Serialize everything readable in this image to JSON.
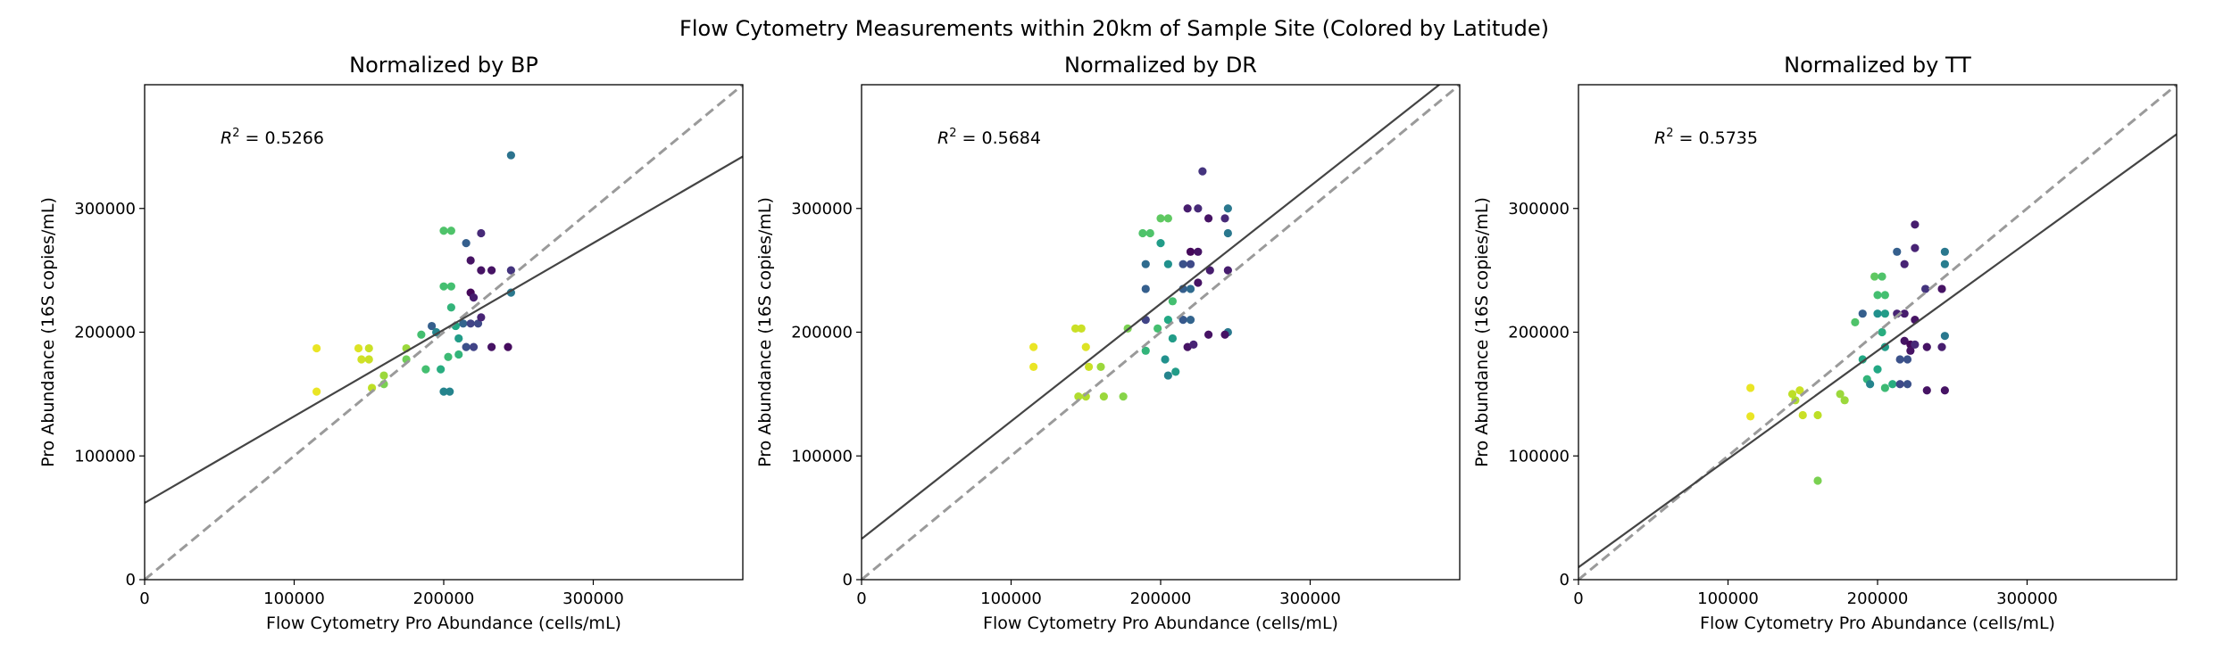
{
  "figure_title": "Flow Cytometry Measurements within 20km of Sample Site (Colored by Latitude)",
  "chart_data": [
    {
      "type": "scatter",
      "title": "Normalized by BP",
      "xlabel": "Flow Cytometry Pro Abundance (cells/mL)",
      "ylabel": "Pro Abundance (16S copies/mL)",
      "xlim": [
        0,
        400000
      ],
      "ylim": [
        0,
        400000
      ],
      "x_ticks": [
        "0",
        "100000",
        "200000",
        "300000"
      ],
      "y_ticks": [
        "0",
        "100000",
        "200000",
        "300000"
      ],
      "annotation": "R² = 0.5266",
      "r2_label": "R",
      "r2_sup": "2",
      "r2_value": " = 0.5266",
      "grid": false,
      "identity_line": true,
      "fit_line": {
        "intercept": 62000,
        "slope": 0.7
      },
      "colormap": "viridis",
      "points": [
        {
          "x": 115000,
          "y": 187000,
          "c": 0.97
        },
        {
          "x": 115000,
          "y": 152000,
          "c": 0.97
        },
        {
          "x": 143000,
          "y": 187000,
          "c": 0.95
        },
        {
          "x": 145000,
          "y": 178000,
          "c": 0.93
        },
        {
          "x": 150000,
          "y": 187000,
          "c": 0.92
        },
        {
          "x": 150000,
          "y": 178000,
          "c": 0.92
        },
        {
          "x": 152000,
          "y": 155000,
          "c": 0.9
        },
        {
          "x": 160000,
          "y": 165000,
          "c": 0.85
        },
        {
          "x": 160000,
          "y": 158000,
          "c": 0.8
        },
        {
          "x": 175000,
          "y": 187000,
          "c": 0.85
        },
        {
          "x": 175000,
          "y": 178000,
          "c": 0.78
        },
        {
          "x": 185000,
          "y": 198000,
          "c": 0.7
        },
        {
          "x": 188000,
          "y": 170000,
          "c": 0.7
        },
        {
          "x": 192000,
          "y": 205000,
          "c": 0.3
        },
        {
          "x": 195000,
          "y": 200000,
          "c": 0.45
        },
        {
          "x": 198000,
          "y": 170000,
          "c": 0.62
        },
        {
          "x": 200000,
          "y": 282000,
          "c": 0.72
        },
        {
          "x": 205000,
          "y": 282000,
          "c": 0.72
        },
        {
          "x": 200000,
          "y": 237000,
          "c": 0.7
        },
        {
          "x": 205000,
          "y": 237000,
          "c": 0.7
        },
        {
          "x": 205000,
          "y": 220000,
          "c": 0.65
        },
        {
          "x": 208000,
          "y": 205000,
          "c": 0.6
        },
        {
          "x": 210000,
          "y": 182000,
          "c": 0.65
        },
        {
          "x": 203000,
          "y": 180000,
          "c": 0.68
        },
        {
          "x": 200000,
          "y": 152000,
          "c": 0.45
        },
        {
          "x": 204000,
          "y": 152000,
          "c": 0.45
        },
        {
          "x": 210000,
          "y": 195000,
          "c": 0.55
        },
        {
          "x": 213000,
          "y": 207000,
          "c": 0.32
        },
        {
          "x": 215000,
          "y": 272000,
          "c": 0.3
        },
        {
          "x": 218000,
          "y": 258000,
          "c": 0.05
        },
        {
          "x": 218000,
          "y": 232000,
          "c": 0.02
        },
        {
          "x": 220000,
          "y": 228000,
          "c": 0.08
        },
        {
          "x": 218000,
          "y": 207000,
          "c": 0.2
        },
        {
          "x": 223000,
          "y": 207000,
          "c": 0.22
        },
        {
          "x": 215000,
          "y": 188000,
          "c": 0.25
        },
        {
          "x": 220000,
          "y": 188000,
          "c": 0.2
        },
        {
          "x": 225000,
          "y": 280000,
          "c": 0.12
        },
        {
          "x": 225000,
          "y": 250000,
          "c": 0.05
        },
        {
          "x": 232000,
          "y": 250000,
          "c": 0.05
        },
        {
          "x": 225000,
          "y": 212000,
          "c": 0.1
        },
        {
          "x": 232000,
          "y": 188000,
          "c": 0.05
        },
        {
          "x": 243000,
          "y": 188000,
          "c": 0.03
        },
        {
          "x": 245000,
          "y": 250000,
          "c": 0.15
        },
        {
          "x": 245000,
          "y": 343000,
          "c": 0.38
        },
        {
          "x": 245000,
          "y": 232000,
          "c": 0.4
        }
      ]
    },
    {
      "type": "scatter",
      "title": "Normalized by DR",
      "xlabel": "Flow Cytometry Pro Abundance (cells/mL)",
      "ylabel": "Pro Abundance (16S copies/mL)",
      "xlim": [
        0,
        400000
      ],
      "ylim": [
        0,
        400000
      ],
      "x_ticks": [
        "0",
        "100000",
        "200000",
        "300000"
      ],
      "y_ticks": [
        "0",
        "100000",
        "200000",
        "300000"
      ],
      "annotation": "R² = 0.5684",
      "r2_label": "R",
      "r2_sup": "2",
      "r2_value": " = 0.5684",
      "grid": false,
      "identity_line": true,
      "fit_line": {
        "intercept": 33000,
        "slope": 0.95
      },
      "colormap": "viridis",
      "points": [
        {
          "x": 115000,
          "y": 188000,
          "c": 0.97
        },
        {
          "x": 115000,
          "y": 172000,
          "c": 0.97
        },
        {
          "x": 143000,
          "y": 203000,
          "c": 0.92
        },
        {
          "x": 147000,
          "y": 203000,
          "c": 0.92
        },
        {
          "x": 150000,
          "y": 188000,
          "c": 0.95
        },
        {
          "x": 152000,
          "y": 172000,
          "c": 0.92
        },
        {
          "x": 145000,
          "y": 148000,
          "c": 0.88
        },
        {
          "x": 150000,
          "y": 148000,
          "c": 0.88
        },
        {
          "x": 160000,
          "y": 172000,
          "c": 0.85
        },
        {
          "x": 162000,
          "y": 148000,
          "c": 0.85
        },
        {
          "x": 175000,
          "y": 148000,
          "c": 0.82
        },
        {
          "x": 178000,
          "y": 203000,
          "c": 0.8
        },
        {
          "x": 188000,
          "y": 280000,
          "c": 0.72
        },
        {
          "x": 193000,
          "y": 280000,
          "c": 0.72
        },
        {
          "x": 190000,
          "y": 255000,
          "c": 0.35
        },
        {
          "x": 190000,
          "y": 235000,
          "c": 0.3
        },
        {
          "x": 190000,
          "y": 210000,
          "c": 0.2
        },
        {
          "x": 190000,
          "y": 185000,
          "c": 0.65
        },
        {
          "x": 198000,
          "y": 203000,
          "c": 0.7
        },
        {
          "x": 200000,
          "y": 292000,
          "c": 0.75
        },
        {
          "x": 205000,
          "y": 292000,
          "c": 0.75
        },
        {
          "x": 200000,
          "y": 272000,
          "c": 0.55
        },
        {
          "x": 205000,
          "y": 255000,
          "c": 0.5
        },
        {
          "x": 208000,
          "y": 225000,
          "c": 0.7
        },
        {
          "x": 205000,
          "y": 210000,
          "c": 0.6
        },
        {
          "x": 208000,
          "y": 195000,
          "c": 0.55
        },
        {
          "x": 203000,
          "y": 178000,
          "c": 0.5
        },
        {
          "x": 205000,
          "y": 165000,
          "c": 0.45
        },
        {
          "x": 210000,
          "y": 168000,
          "c": 0.55
        },
        {
          "x": 215000,
          "y": 255000,
          "c": 0.25
        },
        {
          "x": 220000,
          "y": 255000,
          "c": 0.22
        },
        {
          "x": 215000,
          "y": 235000,
          "c": 0.3
        },
        {
          "x": 220000,
          "y": 235000,
          "c": 0.35
        },
        {
          "x": 215000,
          "y": 210000,
          "c": 0.28
        },
        {
          "x": 220000,
          "y": 210000,
          "c": 0.32
        },
        {
          "x": 218000,
          "y": 188000,
          "c": 0.05
        },
        {
          "x": 222000,
          "y": 190000,
          "c": 0.1
        },
        {
          "x": 218000,
          "y": 300000,
          "c": 0.08
        },
        {
          "x": 225000,
          "y": 300000,
          "c": 0.12
        },
        {
          "x": 220000,
          "y": 265000,
          "c": 0.02
        },
        {
          "x": 225000,
          "y": 265000,
          "c": 0.05
        },
        {
          "x": 225000,
          "y": 240000,
          "c": 0.05
        },
        {
          "x": 228000,
          "y": 330000,
          "c": 0.15
        },
        {
          "x": 232000,
          "y": 292000,
          "c": 0.05
        },
        {
          "x": 233000,
          "y": 250000,
          "c": 0.08
        },
        {
          "x": 232000,
          "y": 198000,
          "c": 0.05
        },
        {
          "x": 245000,
          "y": 300000,
          "c": 0.4
        },
        {
          "x": 245000,
          "y": 280000,
          "c": 0.4
        },
        {
          "x": 243000,
          "y": 292000,
          "c": 0.12
        },
        {
          "x": 245000,
          "y": 250000,
          "c": 0.08
        },
        {
          "x": 245000,
          "y": 200000,
          "c": 0.4
        },
        {
          "x": 243000,
          "y": 198000,
          "c": 0.05
        }
      ]
    },
    {
      "type": "scatter",
      "title": "Normalized by TT",
      "xlabel": "Flow Cytometry Pro Abundance (cells/mL)",
      "ylabel": "Pro Abundance (16S copies/mL)",
      "xlim": [
        0,
        400000
      ],
      "ylim": [
        0,
        400000
      ],
      "x_ticks": [
        "0",
        "100000",
        "200000",
        "300000"
      ],
      "y_ticks": [
        "0",
        "100000",
        "200000",
        "300000"
      ],
      "annotation": "R² = 0.5735",
      "r2_label": "R",
      "r2_sup": "2",
      "r2_value": " = 0.5735",
      "grid": false,
      "identity_line": true,
      "fit_line": {
        "intercept": 10000,
        "slope": 0.875
      },
      "colormap": "viridis",
      "points": [
        {
          "x": 115000,
          "y": 155000,
          "c": 0.97
        },
        {
          "x": 115000,
          "y": 132000,
          "c": 0.97
        },
        {
          "x": 143000,
          "y": 150000,
          "c": 0.9
        },
        {
          "x": 148000,
          "y": 153000,
          "c": 0.92
        },
        {
          "x": 145000,
          "y": 145000,
          "c": 0.88
        },
        {
          "x": 150000,
          "y": 133000,
          "c": 0.92
        },
        {
          "x": 160000,
          "y": 133000,
          "c": 0.9
        },
        {
          "x": 160000,
          "y": 80000,
          "c": 0.8
        },
        {
          "x": 175000,
          "y": 150000,
          "c": 0.85
        },
        {
          "x": 178000,
          "y": 145000,
          "c": 0.85
        },
        {
          "x": 185000,
          "y": 208000,
          "c": 0.72
        },
        {
          "x": 190000,
          "y": 215000,
          "c": 0.3
        },
        {
          "x": 190000,
          "y": 178000,
          "c": 0.6
        },
        {
          "x": 193000,
          "y": 162000,
          "c": 0.65
        },
        {
          "x": 195000,
          "y": 158000,
          "c": 0.45
        },
        {
          "x": 198000,
          "y": 245000,
          "c": 0.75
        },
        {
          "x": 203000,
          "y": 245000,
          "c": 0.72
        },
        {
          "x": 200000,
          "y": 230000,
          "c": 0.7
        },
        {
          "x": 205000,
          "y": 230000,
          "c": 0.7
        },
        {
          "x": 200000,
          "y": 215000,
          "c": 0.5
        },
        {
          "x": 205000,
          "y": 215000,
          "c": 0.55
        },
        {
          "x": 203000,
          "y": 200000,
          "c": 0.62
        },
        {
          "x": 205000,
          "y": 188000,
          "c": 0.55
        },
        {
          "x": 200000,
          "y": 170000,
          "c": 0.6
        },
        {
          "x": 205000,
          "y": 155000,
          "c": 0.68
        },
        {
          "x": 210000,
          "y": 158000,
          "c": 0.62
        },
        {
          "x": 213000,
          "y": 215000,
          "c": 0.1
        },
        {
          "x": 218000,
          "y": 215000,
          "c": 0.08
        },
        {
          "x": 213000,
          "y": 265000,
          "c": 0.3
        },
        {
          "x": 218000,
          "y": 255000,
          "c": 0.1
        },
        {
          "x": 215000,
          "y": 178000,
          "c": 0.25
        },
        {
          "x": 220000,
          "y": 178000,
          "c": 0.25
        },
        {
          "x": 215000,
          "y": 158000,
          "c": 0.22
        },
        {
          "x": 220000,
          "y": 158000,
          "c": 0.25
        },
        {
          "x": 218000,
          "y": 193000,
          "c": 0.05
        },
        {
          "x": 222000,
          "y": 190000,
          "c": 0.02
        },
        {
          "x": 222000,
          "y": 185000,
          "c": 0.05
        },
        {
          "x": 225000,
          "y": 287000,
          "c": 0.08
        },
        {
          "x": 225000,
          "y": 268000,
          "c": 0.1
        },
        {
          "x": 225000,
          "y": 210000,
          "c": 0.05
        },
        {
          "x": 225000,
          "y": 190000,
          "c": 0.12
        },
        {
          "x": 232000,
          "y": 235000,
          "c": 0.15
        },
        {
          "x": 233000,
          "y": 188000,
          "c": 0.05
        },
        {
          "x": 233000,
          "y": 153000,
          "c": 0.05
        },
        {
          "x": 245000,
          "y": 265000,
          "c": 0.4
        },
        {
          "x": 245000,
          "y": 255000,
          "c": 0.42
        },
        {
          "x": 243000,
          "y": 235000,
          "c": 0.05
        },
        {
          "x": 245000,
          "y": 197000,
          "c": 0.4
        },
        {
          "x": 243000,
          "y": 188000,
          "c": 0.08
        },
        {
          "x": 245000,
          "y": 153000,
          "c": 0.05
        }
      ]
    }
  ]
}
